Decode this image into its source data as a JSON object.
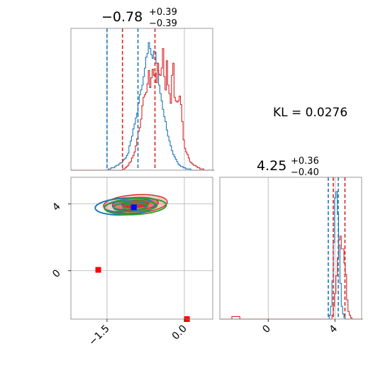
{
  "chart_data": {
    "type": "corner",
    "kl_label": "KL = 0.0276",
    "params": [
      {
        "title_main": "−0.78",
        "title_plus": "+0.39",
        "title_minus": "−0.39",
        "range": [
          -2.2,
          0.55
        ],
        "ticks": [
          -1.5,
          0.0
        ],
        "tick_labels": [
          "−1.5",
          "0.0"
        ]
      },
      {
        "title_main": "4.25",
        "title_plus": "+0.36",
        "title_minus": "−0.40",
        "range": [
          -2.9,
          5.6
        ],
        "ticks": [
          0,
          4
        ],
        "tick_labels": [
          "0",
          "4"
        ]
      }
    ],
    "series": [
      {
        "color": "#1f77b4",
        "p0_quantiles": [
          -1.5,
          -0.9
        ],
        "p1_quantiles": [
          3.6,
          4.2
        ]
      },
      {
        "color": "#d62728",
        "p0_quantiles": [
          -1.2,
          -0.57
        ],
        "p1_quantiles": [
          3.9,
          4.6
        ]
      }
    ],
    "hist_p0": [
      {
        "color": "#1f77b4",
        "start": -2.2,
        "bin": 0.025,
        "counts": [
          0,
          0,
          0,
          0,
          0,
          0,
          0,
          0,
          0,
          0,
          0,
          0,
          0,
          0,
          0,
          0,
          0,
          0,
          0,
          0,
          0,
          0,
          0,
          0,
          0,
          0,
          0,
          0,
          0,
          1,
          1,
          2,
          2,
          2,
          3,
          4,
          4,
          5,
          6,
          6,
          8,
          9,
          10,
          12,
          14,
          20,
          24,
          28,
          34,
          38,
          43,
          47,
          55,
          62,
          66,
          70,
          77,
          84,
          93,
          96,
          105,
          100,
          95,
          92,
          98,
          97,
          88,
          82,
          70,
          63,
          57,
          50,
          44,
          40,
          33,
          28,
          24,
          20,
          16,
          13,
          11,
          9,
          7,
          5,
          4,
          3,
          3,
          2,
          2,
          1,
          1,
          1,
          1,
          0,
          0,
          0,
          0,
          0,
          0,
          0,
          0,
          0,
          0,
          0,
          0,
          0,
          0,
          0,
          0,
          0,
          0
        ]
      },
      {
        "color": "#d62728",
        "start": -2.2,
        "bin": 0.025,
        "counts": [
          0,
          0,
          0,
          0,
          0,
          0,
          0,
          0,
          0,
          0,
          0,
          0,
          0,
          0,
          0,
          0,
          0,
          0,
          0,
          0,
          0,
          0,
          0,
          0,
          0,
          0,
          0,
          0,
          0,
          0,
          0,
          0,
          0,
          0,
          0,
          0,
          0,
          0,
          0,
          0,
          1,
          1,
          2,
          3,
          4,
          6,
          7,
          10,
          12,
          15,
          20,
          26,
          32,
          35,
          42,
          53,
          60,
          62,
          64,
          71,
          82,
          68,
          76,
          83,
          78,
          80,
          72,
          88,
          79,
          78,
          84,
          100,
          77,
          66,
          90,
          70,
          63,
          55,
          78,
          88,
          60,
          57,
          56,
          57,
          61,
          54,
          40,
          25,
          18,
          15,
          13,
          10,
          7,
          6,
          5,
          4,
          4,
          3,
          2,
          2,
          1,
          1,
          1,
          0,
          0,
          0,
          0,
          0,
          0,
          0,
          0
        ]
      }
    ],
    "hist_p1": [
      {
        "color": "#1f77b4",
        "start": -2.9,
        "bin": 0.08,
        "counts": [
          0,
          0,
          0,
          0,
          0,
          0,
          0,
          0,
          0,
          0,
          0,
          0,
          0,
          0,
          0,
          0,
          0,
          0,
          0,
          0,
          0,
          0,
          0,
          0,
          0,
          0,
          0,
          0,
          0,
          0,
          0,
          0,
          0,
          0,
          0,
          0,
          0,
          0,
          0,
          0,
          0,
          0,
          0,
          0,
          0,
          0,
          0,
          0,
          0,
          0,
          0,
          0,
          0,
          0,
          0,
          0,
          0,
          0,
          0,
          0,
          0,
          0,
          0,
          0,
          0,
          0,
          0,
          0,
          0,
          0,
          0,
          0,
          0,
          0,
          0,
          0,
          0,
          0,
          0,
          0,
          0,
          0,
          3,
          10,
          30,
          60,
          95,
          100,
          82,
          58,
          28,
          10,
          4,
          1,
          0,
          0,
          0,
          0,
          0,
          0,
          0,
          0,
          0,
          0,
          0,
          0,
          0
        ]
      },
      {
        "color": "#d62728",
        "start": -2.9,
        "bin": 0.08,
        "counts": [
          0,
          0,
          0,
          0,
          0,
          0,
          0,
          0,
          0,
          2,
          2,
          2,
          2,
          2,
          2,
          0,
          0,
          0,
          0,
          0,
          0,
          0,
          0,
          0,
          0,
          0,
          0,
          0,
          0,
          0,
          0,
          0,
          0,
          0,
          0,
          0,
          0,
          0,
          0,
          0,
          0,
          0,
          0,
          0,
          0,
          0,
          0,
          0,
          0,
          0,
          0,
          0,
          0,
          0,
          0,
          0,
          0,
          0,
          0,
          0,
          0,
          0,
          0,
          0,
          0,
          0,
          0,
          0,
          0,
          0,
          0,
          0,
          0,
          0,
          0,
          0,
          0,
          0,
          0,
          0,
          0,
          0,
          0,
          0,
          3,
          10,
          20,
          34,
          48,
          62,
          65,
          55,
          55,
          44,
          35,
          15,
          6,
          3,
          1,
          0,
          0,
          0,
          0,
          0,
          0,
          0,
          0
        ]
      }
    ],
    "contours": [
      {
        "color": "#d62728",
        "cx": -0.95,
        "cy": 4.0,
        "rx": 0.62,
        "ry": 0.55,
        "rot": -4
      },
      {
        "color": "#1f77b4",
        "cx": -1.15,
        "cy": 3.85,
        "rx": 0.58,
        "ry": 0.5,
        "rot": -3
      },
      {
        "color": "#2ca02c",
        "cx": -0.95,
        "cy": 3.85,
        "rx": 0.6,
        "ry": 0.48,
        "rot": -3
      }
    ],
    "markers": [
      {
        "color": "#0000ff",
        "x": -0.98,
        "y": 3.8
      },
      {
        "color": "#ff0000",
        "x": -1.67,
        "y": 0.05
      },
      {
        "color": "#ff0000",
        "x": 0.05,
        "y": -2.9
      }
    ]
  }
}
